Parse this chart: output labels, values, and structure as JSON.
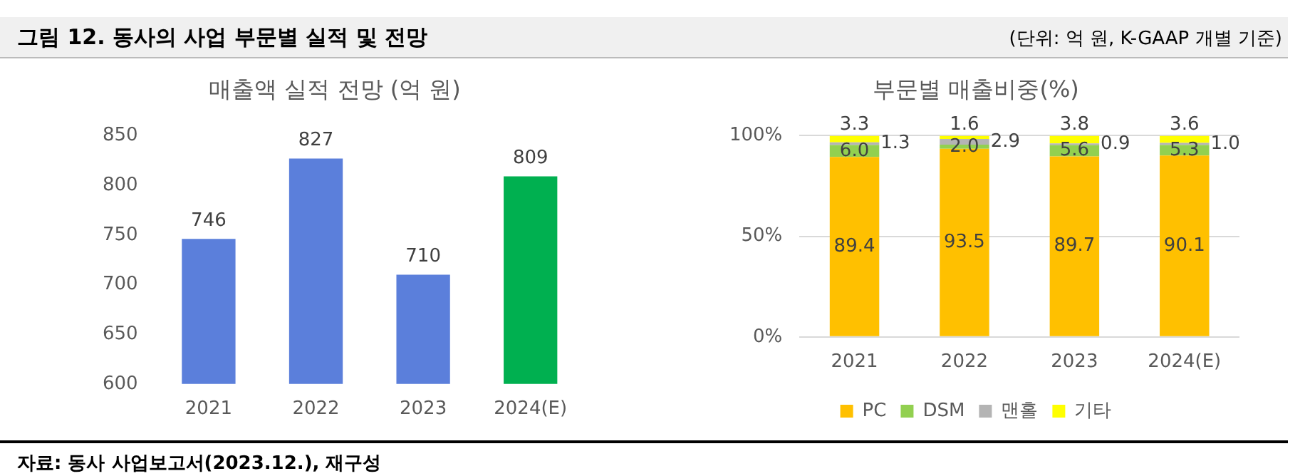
{
  "chart_data": [
    {
      "type": "bar",
      "title": "매출액 실적 전망 (억 원)",
      "annotations": [
        "그림 12. 동사의 사업 부문별 실적 및 전망",
        "(단위: 억 원, K-GAAP 개별 기준)",
        "자료: 동사 사업보고서(2023.12.), 재구성"
      ],
      "categories": [
        "2021",
        "2022",
        "2023",
        "2024(E)"
      ],
      "values": [
        746,
        827,
        710,
        809
      ],
      "colors": [
        "#5b7fdb",
        "#5b7fdb",
        "#5b7fdb",
        "#00b050"
      ],
      "ylim": [
        600,
        850
      ],
      "yticks": [
        600,
        650,
        700,
        750,
        800,
        850
      ],
      "data_labels": true
    },
    {
      "type": "bar",
      "title": "부문별 매출비중(%)",
      "stacked": true,
      "categories": [
        "2021",
        "2022",
        "2023",
        "2024(E)"
      ],
      "series": [
        {
          "name": "PC",
          "color": "#ffc000",
          "values": [
            89.4,
            93.5,
            89.7,
            90.1
          ],
          "value_labels": [
            "89.4",
            "93.5",
            "89.7",
            "90.1"
          ]
        },
        {
          "name": "DSM",
          "color": "#92d050",
          "values": [
            6.0,
            2.0,
            5.6,
            5.3
          ],
          "value_labels": [
            "6.0",
            "2.0",
            "5.6",
            "5.3"
          ]
        },
        {
          "name": "맨홀",
          "color": "#b4b4b4",
          "values": [
            1.3,
            2.9,
            0.9,
            1.0
          ],
          "value_labels": [
            "1.3",
            "2.9",
            "0.9",
            "1.0"
          ]
        },
        {
          "name": "기타",
          "color": "#ffff00",
          "values": [
            3.3,
            1.6,
            3.8,
            3.6
          ],
          "value_labels": [
            "3.3",
            "1.6",
            "3.8",
            "3.6"
          ]
        }
      ],
      "ylim": [
        0,
        100
      ],
      "yticks": [
        {
          "value": 0,
          "label": "0%"
        },
        {
          "value": 50,
          "label": "50%"
        },
        {
          "value": 100,
          "label": "100%"
        }
      ],
      "grid": "y",
      "legend": "bottom"
    }
  ]
}
